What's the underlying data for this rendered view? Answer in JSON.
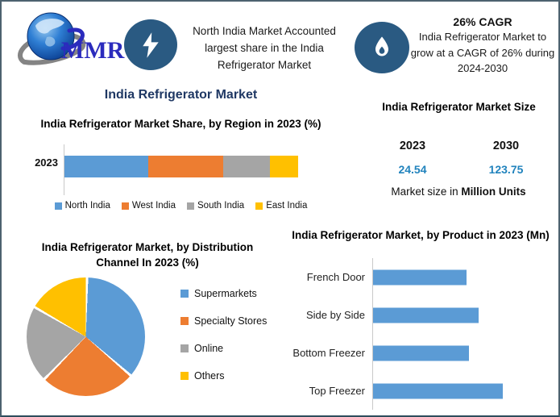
{
  "header": {
    "logo": {
      "text": "MMR"
    },
    "highlight_left": {
      "icon": "lightning-icon",
      "text": "North India Market Accounted largest share in the India Refrigerator Market"
    },
    "highlight_right": {
      "icon": "flame-icon",
      "heading": "26% CAGR",
      "text": "India Refrigerator Market to grow at a CAGR of 26% during 2024-2030"
    }
  },
  "main_title": "India Refrigerator Market",
  "market_size": {
    "title": "India Refrigerator Market Size",
    "columns": [
      {
        "year": "2023",
        "value": "24.54"
      },
      {
        "year": "2030",
        "value": "123.75"
      }
    ],
    "caption_prefix": "Market size in",
    "caption_bold": "Million Units",
    "value_color": "#2183bd"
  },
  "colors": {
    "accent_navy": "#1f3864",
    "badge_teal": "#2a5a82",
    "value_teal": "#2183bd",
    "series_blue": "#5b9bd5",
    "series_orange": "#ed7d31",
    "series_gray": "#a5a5a5",
    "series_yellow": "#ffc000"
  },
  "chart_data": [
    {
      "type": "bar",
      "subtype": "stacked-horizontal",
      "title": "India Refrigerator Market Share, by Region in 2023 (%)",
      "categories": [
        "2023"
      ],
      "series": [
        {
          "name": "North India",
          "color": "#5b9bd5",
          "values": [
            36
          ]
        },
        {
          "name": "West India",
          "color": "#ed7d31",
          "values": [
            32
          ]
        },
        {
          "name": "South India",
          "color": "#a5a5a5",
          "values": [
            20
          ]
        },
        {
          "name": "East India",
          "color": "#ffc000",
          "values": [
            12
          ]
        }
      ],
      "legend_position": "bottom",
      "xlim": [
        0,
        100
      ],
      "note": "Segment percentages estimated from bar segment lengths; no data labels shown in chart"
    },
    {
      "type": "pie",
      "title": "India Refrigerator Market, by Distribution Channel In 2023 (%)",
      "slices": [
        {
          "label": "Supermarkets",
          "color": "#5b9bd5",
          "value": 36
        },
        {
          "label": "Specialty Stores",
          "color": "#ed7d31",
          "value": 26
        },
        {
          "label": "Online",
          "color": "#a5a5a5",
          "value": 21
        },
        {
          "label": "Others",
          "color": "#ffc000",
          "value": 17
        }
      ],
      "start_angle_deg": 0,
      "legend_position": "right",
      "note": "Slice percentages estimated from slice angles; no data labels shown in chart"
    },
    {
      "type": "bar",
      "subtype": "horizontal",
      "title": "India Refrigerator Market, by Product in 2023 (Mn)",
      "categories": [
        "French Door",
        "Side by Side",
        "Bottom Freezer",
        "Top Freezer"
      ],
      "values_relative_pct": [
        72,
        81,
        74,
        100
      ],
      "bar_color": "#5b9bd5",
      "note": "No value labels or axis ticks shown; values are bar lengths relative to longest bar = 100"
    }
  ]
}
